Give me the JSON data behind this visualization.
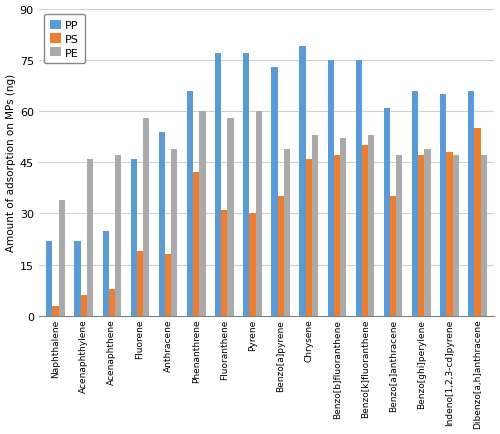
{
  "categories": [
    "Naphthalene",
    "Acenaphthylene",
    "Acenaphthene",
    "Fluorene",
    "Anthracene",
    "Phenanthrene",
    "Fluoranthene",
    "Pyrene",
    "Benzo[a]pyrene",
    "Chrysene",
    "Benzo[b]fluoranthene",
    "Benzo[k]fluoranthene",
    "Benzo[a]anthracene",
    "Benzo[ghi]perylene",
    "Indeno[1,2,3-cd]pyrene",
    "Dibenzo[a,h]anthracene"
  ],
  "PP": [
    22,
    22,
    25,
    46,
    54,
    66,
    77,
    77,
    73,
    79,
    75,
    75,
    61,
    66,
    65,
    66
  ],
  "PS": [
    3,
    6,
    8,
    19,
    18,
    42,
    31,
    30,
    35,
    46,
    47,
    50,
    35,
    47,
    48,
    55
  ],
  "PE": [
    34,
    46,
    47,
    58,
    49,
    60,
    58,
    60,
    49,
    53,
    52,
    53,
    47,
    49,
    47,
    47
  ],
  "PP_color": "#5B9BD5",
  "PS_color": "#ED7D31",
  "PE_color": "#AAAAAA",
  "ylabel": "Amount of adsorption on MPs (ng)",
  "ylim": [
    0,
    90
  ],
  "yticks": [
    0,
    15,
    30,
    45,
    60,
    75,
    90
  ],
  "bar_width": 0.22,
  "figsize": [
    5.0,
    4.35
  ],
  "dpi": 100
}
